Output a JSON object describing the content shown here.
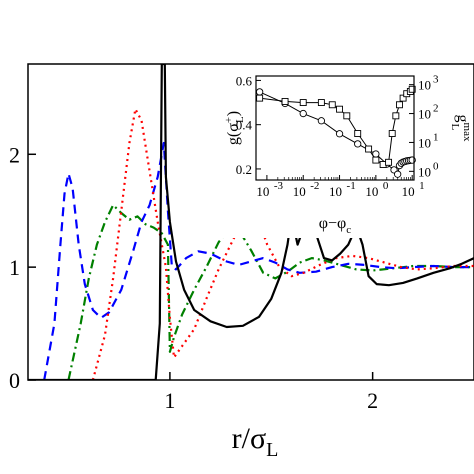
{
  "chart_data": [
    {
      "type": "line",
      "xlabel": "r/σ",
      "xlabel_subscript": "L",
      "ylabel": "",
      "xlim": [
        0.3,
        2.5
      ],
      "ylim": [
        0,
        2.8
      ],
      "x_ticks": [
        1,
        2
      ],
      "x_tick_labels": [
        "1",
        "2"
      ],
      "y_ticks": [
        0,
        1,
        2
      ],
      "y_tick_labels": [
        "0",
        "1",
        "2"
      ],
      "grid": false,
      "series": [
        {
          "color": "#000000",
          "dash": "solid",
          "points": [
            [
              0.3,
              0
            ],
            [
              0.93,
              0
            ],
            [
              0.95,
              0.5
            ],
            [
              0.96,
              2.8
            ],
            [
              0.975,
              2.8
            ],
            [
              0.98,
              1.8
            ],
            [
              1.0,
              1.4
            ],
            [
              1.03,
              1.05
            ],
            [
              1.07,
              0.8
            ],
            [
              1.12,
              0.62
            ],
            [
              1.2,
              0.52
            ],
            [
              1.28,
              0.47
            ],
            [
              1.36,
              0.48
            ],
            [
              1.44,
              0.56
            ],
            [
              1.5,
              0.72
            ],
            [
              1.55,
              0.95
            ],
            [
              1.58,
              1.2
            ],
            [
              1.6,
              1.45
            ],
            [
              1.63,
              1.2
            ],
            [
              1.66,
              1.35
            ],
            [
              1.69,
              1.52
            ],
            [
              1.72,
              1.3
            ],
            [
              1.76,
              1.08
            ],
            [
              1.8,
              1.06
            ],
            [
              1.84,
              1.12
            ],
            [
              1.88,
              1.2
            ],
            [
              1.92,
              1.36
            ],
            [
              1.95,
              1.2
            ],
            [
              1.98,
              0.92
            ],
            [
              2.02,
              0.85
            ],
            [
              2.08,
              0.84
            ],
            [
              2.15,
              0.86
            ],
            [
              2.22,
              0.9
            ],
            [
              2.3,
              0.95
            ],
            [
              2.38,
              0.99
            ],
            [
              2.44,
              1.03
            ],
            [
              2.5,
              1.08
            ]
          ]
        },
        {
          "color": "#0000ff",
          "dash": "dashed",
          "points": [
            [
              0.38,
              0
            ],
            [
              0.43,
              0.5
            ],
            [
              0.46,
              1.2
            ],
            [
              0.48,
              1.65
            ],
            [
              0.5,
              1.83
            ],
            [
              0.52,
              1.7
            ],
            [
              0.55,
              1.2
            ],
            [
              0.58,
              0.85
            ],
            [
              0.62,
              0.62
            ],
            [
              0.66,
              0.55
            ],
            [
              0.7,
              0.6
            ],
            [
              0.76,
              0.8
            ],
            [
              0.82,
              1.15
            ],
            [
              0.86,
              1.4
            ],
            [
              0.9,
              1.55
            ],
            [
              0.94,
              1.8
            ],
            [
              0.97,
              2.1
            ],
            [
              0.99,
              1.5
            ],
            [
              1.01,
              1.0
            ],
            [
              1.03,
              0.98
            ],
            [
              1.08,
              1.08
            ],
            [
              1.14,
              1.14
            ],
            [
              1.2,
              1.12
            ],
            [
              1.28,
              1.05
            ],
            [
              1.34,
              1.02
            ],
            [
              1.4,
              1.05
            ],
            [
              1.46,
              1.08
            ],
            [
              1.52,
              1.04
            ],
            [
              1.58,
              0.98
            ],
            [
              1.64,
              0.95
            ],
            [
              1.72,
              0.96
            ],
            [
              1.8,
              1.0
            ],
            [
              1.88,
              1.03
            ],
            [
              1.96,
              1.02
            ],
            [
              2.04,
              1.0
            ],
            [
              2.12,
              0.99
            ],
            [
              2.2,
              1.0
            ],
            [
              2.3,
              1.01
            ],
            [
              2.4,
              1.0
            ],
            [
              2.5,
              1.0
            ]
          ]
        },
        {
          "color": "#008000",
          "dash": "dashdot",
          "points": [
            [
              0.5,
              0
            ],
            [
              0.56,
              0.5
            ],
            [
              0.6,
              0.9
            ],
            [
              0.64,
              1.2
            ],
            [
              0.68,
              1.4
            ],
            [
              0.72,
              1.55
            ],
            [
              0.76,
              1.48
            ],
            [
              0.8,
              1.42
            ],
            [
              0.84,
              1.45
            ],
            [
              0.88,
              1.38
            ],
            [
              0.92,
              1.35
            ],
            [
              0.96,
              1.3
            ],
            [
              0.99,
              1.2
            ],
            [
              1.0,
              0.25
            ],
            [
              1.02,
              0.38
            ],
            [
              1.06,
              0.58
            ],
            [
              1.12,
              0.8
            ],
            [
              1.18,
              1.0
            ],
            [
              1.24,
              1.22
            ],
            [
              1.3,
              1.36
            ],
            [
              1.35,
              1.3
            ],
            [
              1.4,
              1.15
            ],
            [
              1.46,
              0.95
            ],
            [
              1.52,
              0.9
            ],
            [
              1.58,
              0.96
            ],
            [
              1.64,
              1.04
            ],
            [
              1.7,
              1.08
            ],
            [
              1.76,
              1.06
            ],
            [
              1.84,
              1.02
            ],
            [
              1.92,
              0.98
            ],
            [
              2.0,
              0.97
            ],
            [
              2.1,
              0.99
            ],
            [
              2.2,
              1.01
            ],
            [
              2.3,
              1.01
            ],
            [
              2.4,
              1.0
            ],
            [
              2.5,
              1.0
            ]
          ]
        },
        {
          "color": "#ff0000",
          "dash": "dotted",
          "points": [
            [
              0.62,
              0
            ],
            [
              0.68,
              0.4
            ],
            [
              0.72,
              0.9
            ],
            [
              0.76,
              1.5
            ],
            [
              0.8,
              2.1
            ],
            [
              0.83,
              2.4
            ],
            [
              0.86,
              2.3
            ],
            [
              0.9,
              1.85
            ],
            [
              0.94,
              1.4
            ],
            [
              0.98,
              1.0
            ],
            [
              1.0,
              0.55
            ],
            [
              1.02,
              0.2
            ],
            [
              1.06,
              0.3
            ],
            [
              1.12,
              0.45
            ],
            [
              1.18,
              0.72
            ],
            [
              1.24,
              0.98
            ],
            [
              1.3,
              1.2
            ],
            [
              1.35,
              1.38
            ],
            [
              1.4,
              1.48
            ],
            [
              1.44,
              1.4
            ],
            [
              1.48,
              1.2
            ],
            [
              1.54,
              1.0
            ],
            [
              1.6,
              0.92
            ],
            [
              1.66,
              0.95
            ],
            [
              1.74,
              1.02
            ],
            [
              1.82,
              1.08
            ],
            [
              1.9,
              1.1
            ],
            [
              1.98,
              1.08
            ],
            [
              2.06,
              1.04
            ],
            [
              2.14,
              1.0
            ],
            [
              2.22,
              0.98
            ],
            [
              2.3,
              0.99
            ],
            [
              2.4,
              1.01
            ],
            [
              2.5,
              1.01
            ]
          ]
        }
      ]
    },
    {
      "type": "line",
      "inset": true,
      "xlabel": "φ−φ",
      "xlabel_subscript": "c",
      "ylabel_left": "g(σ",
      "ylabel_left_sub": "L",
      "ylabel_left_sup": "+",
      "ylabel_left_close": ")",
      "ylabel_right": "g",
      "ylabel_right_sup": "max",
      "ylabel_right_sub": "L",
      "x_scale": "log",
      "xlim_log10": [
        -3.3,
        1.05
      ],
      "x_ticks_log10": [
        -3,
        -2,
        -1,
        0,
        1
      ],
      "x_tick_labels": [
        "10",
        "10",
        "10",
        "10",
        "10"
      ],
      "x_tick_exps": [
        "-3",
        "-2",
        "-1",
        "0",
        "1"
      ],
      "left_ylim": [
        0.15,
        0.62
      ],
      "left_ticks": [
        0.2,
        0.4,
        0.6
      ],
      "left_tick_labels": [
        "0.2",
        "0.4",
        "0.6"
      ],
      "right_scale": "log",
      "right_ylim_log10": [
        -0.3,
        3.3
      ],
      "right_ticks_log10": [
        0,
        1,
        2,
        3
      ],
      "right_tick_labels": [
        "10",
        "10",
        "10",
        "10"
      ],
      "right_tick_exps": [
        "0",
        "1",
        "2",
        "3"
      ],
      "series": [
        {
          "marker": "circle",
          "axis": "right",
          "points_log10": [
            [
              -3.2,
              2.75
            ],
            [
              -2.5,
              2.35
            ],
            [
              -2.0,
              2.0
            ],
            [
              -1.5,
              1.75
            ],
            [
              -1.0,
              1.3
            ],
            [
              -0.5,
              0.95
            ],
            [
              0.0,
              0.6
            ],
            [
              0.3,
              0.25
            ],
            [
              0.5,
              0.05
            ],
            [
              0.6,
              -0.1
            ],
            [
              0.65,
              0.2
            ],
            [
              0.7,
              0.28
            ],
            [
              0.75,
              0.32
            ],
            [
              0.8,
              0.34
            ],
            [
              0.85,
              0.36
            ],
            [
              0.9,
              0.37
            ],
            [
              0.95,
              0.38
            ],
            [
              1.0,
              0.39
            ]
          ]
        },
        {
          "marker": "square",
          "axis": "left",
          "points_log10": [
            [
              -3.2,
              0.52
            ],
            [
              -2.5,
              0.505
            ],
            [
              -2.0,
              0.5
            ],
            [
              -1.5,
              0.5
            ],
            [
              -1.2,
              0.49
            ],
            [
              -1.0,
              0.47
            ],
            [
              -0.8,
              0.44
            ],
            [
              -0.5,
              0.36
            ],
            [
              -0.2,
              0.29
            ],
            [
              0.0,
              0.24
            ],
            [
              0.2,
              0.22
            ],
            [
              0.35,
              0.23
            ],
            [
              0.45,
              0.36
            ],
            [
              0.55,
              0.44
            ],
            [
              0.65,
              0.49
            ],
            [
              0.75,
              0.52
            ],
            [
              0.85,
              0.54
            ],
            [
              0.95,
              0.55
            ],
            [
              1.0,
              0.56
            ]
          ]
        }
      ]
    }
  ]
}
